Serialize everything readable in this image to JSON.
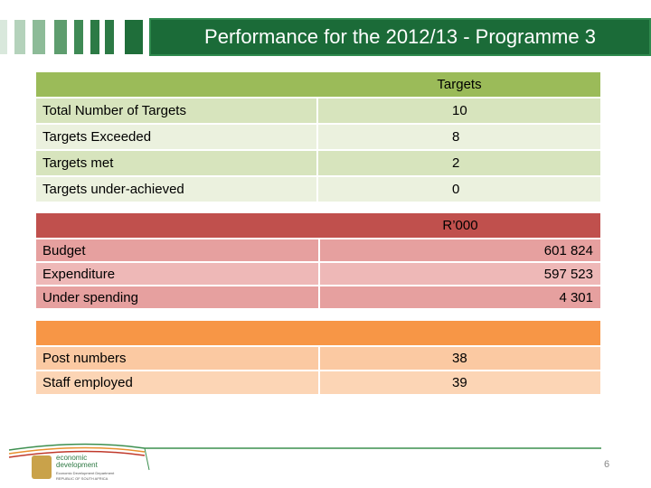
{
  "header": {
    "title": "Performance for the 2012/13 - Programme 3"
  },
  "targets": {
    "heading": "Targets",
    "rows": [
      [
        "Total Number of Targets",
        "10"
      ],
      [
        "Targets Exceeded",
        "8"
      ],
      [
        "Targets met",
        "2"
      ],
      [
        "Targets under-achieved",
        "0"
      ]
    ]
  },
  "finance": {
    "heading": "R’000",
    "rows": [
      [
        "Budget",
        "601 824"
      ],
      [
        "Expenditure",
        "597 523"
      ],
      [
        "Under spending",
        "4 301"
      ]
    ]
  },
  "posts": {
    "rows": [
      [
        "Post numbers",
        "38"
      ],
      [
        "Staff employed",
        "39"
      ]
    ]
  },
  "logo": {
    "name": [
      "economic",
      "development"
    ],
    "department": "Economic Development Department",
    "country": "REPUBLIC OF SOUTH AFRICA"
  },
  "page_number": "6"
}
